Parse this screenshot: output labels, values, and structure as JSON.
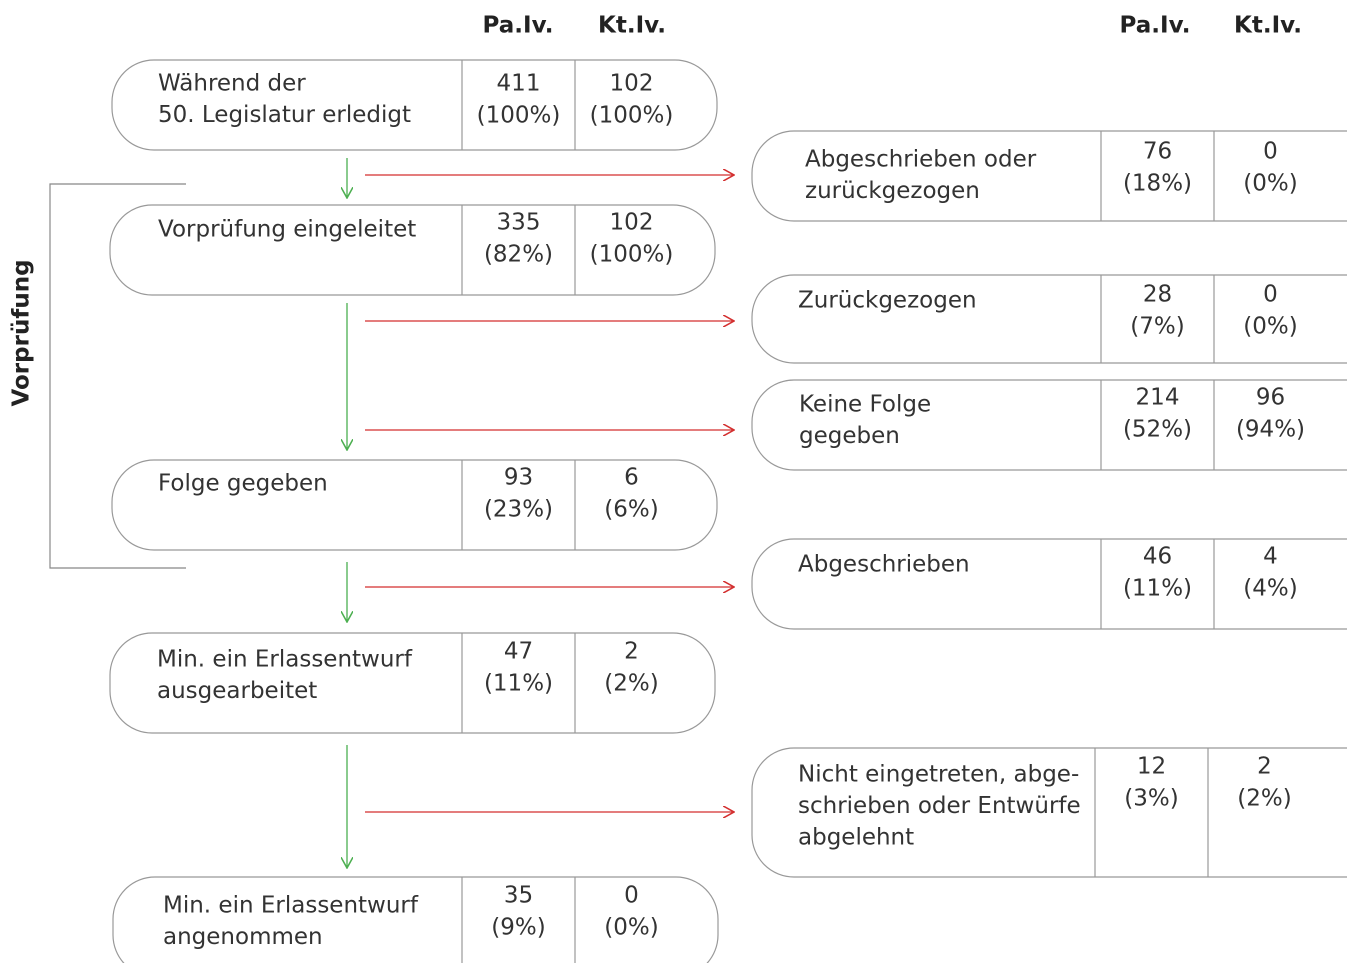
{
  "headers": {
    "left": [
      "Pa.Iv.",
      "Kt.Iv."
    ],
    "right": [
      "Pa.Iv.",
      "Kt.Iv."
    ]
  },
  "side_label": "Vorprüfung",
  "left_nodes": [
    {
      "label": [
        "Während der",
        "50. Legislatur erledigt"
      ],
      "pa": "411",
      "pa_share": "(100%)",
      "kt": "102",
      "kt_share": "(100%)"
    },
    {
      "label": [
        "Vorprüfung eingeleitet"
      ],
      "pa": "335",
      "pa_share": "(82%)",
      "kt": "102",
      "kt_share": "(100%)"
    },
    {
      "label": [
        "Folge gegeben"
      ],
      "pa": "93",
      "pa_share": "(23%)",
      "kt": "6",
      "kt_share": "(6%)"
    },
    {
      "label": [
        "Min. ein Erlassentwurf",
        "ausgearbeitet"
      ],
      "pa": "47",
      "pa_share": "(11%)",
      "kt": "2",
      "kt_share": "(2%)"
    },
    {
      "label": [
        "Min. ein Erlassentwurf",
        "angenommen"
      ],
      "pa": "35",
      "pa_share": "(9%)",
      "kt": "0",
      "kt_share": "(0%)"
    }
  ],
  "right_nodes": [
    {
      "label": [
        "Abgeschrieben oder",
        "zurückgezogen"
      ],
      "pa": "76",
      "pa_share": "(18%)",
      "kt": "0",
      "kt_share": "(0%)"
    },
    {
      "label": [
        "Zurückgezogen"
      ],
      "pa": "28",
      "pa_share": "(7%)",
      "kt": "0",
      "kt_share": "(0%)"
    },
    {
      "label": [
        "Keine Folge",
        "gegeben"
      ],
      "pa": "214",
      "pa_share": "(52%)",
      "kt": "96",
      "kt_share": "(94%)"
    },
    {
      "label": [
        "Abgeschrieben"
      ],
      "pa": "46",
      "pa_share": "(11%)",
      "kt": "4",
      "kt_share": "(4%)"
    },
    {
      "label": [
        "Nicht eingetreten, abge-",
        "schrieben oder Entwürfe",
        "abgelehnt"
      ],
      "pa": "12",
      "pa_share": "(3%)",
      "kt": "2",
      "kt_share": "(2%)"
    }
  ]
}
